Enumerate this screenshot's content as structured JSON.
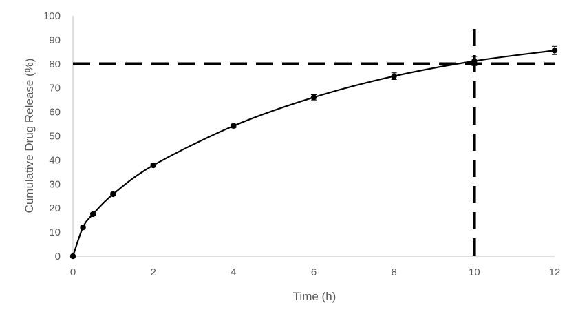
{
  "chart_data": {
    "type": "line",
    "xlabel": "Time (h)",
    "ylabel": "Cumulative Drug Release (%)",
    "xlim": [
      0,
      12
    ],
    "ylim": [
      0,
      100
    ],
    "x_ticks": [
      "0",
      "2",
      "4",
      "6",
      "8",
      "10",
      "12"
    ],
    "y_ticks": [
      "0",
      "10",
      "20",
      "30",
      "40",
      "50",
      "60",
      "70",
      "80",
      "90",
      "100"
    ],
    "grid": false,
    "legend": "none",
    "series": [
      {
        "x": [
          0,
          0.25,
          0.5,
          1,
          2,
          4,
          6,
          8,
          10,
          12
        ],
        "y": [
          0,
          12,
          17.5,
          25.8,
          37.8,
          54.2,
          66.1,
          74.9,
          81.2,
          85.6
        ],
        "error": [
          0,
          0.5,
          0.5,
          0.6,
          0.6,
          0.8,
          1.1,
          1.4,
          1.9,
          1.7
        ]
      }
    ],
    "reference_lines": {
      "horizontal_y": 80,
      "vertical_x": 10
    },
    "colors": {
      "line": "#000000",
      "axis": "#bfbfbf",
      "text": "#595959"
    }
  }
}
